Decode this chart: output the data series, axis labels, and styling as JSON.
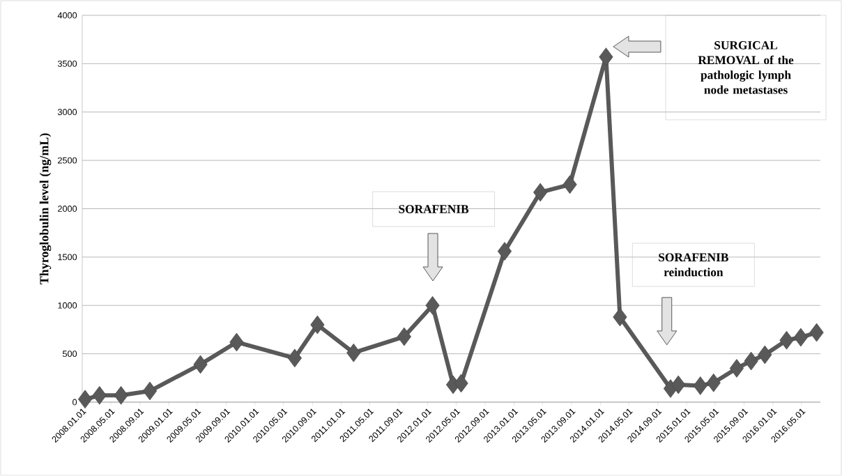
{
  "chart_data": {
    "type": "line",
    "ylabel": "Thyroglobulin  level (ng/mL)",
    "color": "#595959",
    "marker": "diamond",
    "line_style": "solid",
    "grid": "y",
    "x": [
      "2008-01-13",
      "2008-03-14",
      "2008-06-13",
      "2008-10-13",
      "2009-05-15",
      "2009-10-15",
      "2010-06-18",
      "2010-09-22",
      "2011-02-22",
      "2011-09-24",
      "2012-01-22",
      "2012-04-18",
      "2012-05-22",
      "2012-11-22",
      "2013-04-22",
      "2013-08-25",
      "2014-01-25",
      "2014-03-25",
      "2014-10-25",
      "2014-11-27",
      "2015-02-28",
      "2015-04-25",
      "2015-08-01",
      "2015-10-01",
      "2015-11-28",
      "2016-02-28",
      "2016-04-28",
      "2016-07-04"
    ],
    "values": [
      30,
      70,
      70,
      115,
      390,
      620,
      455,
      800,
      510,
      677,
      1000,
      180,
      195,
      1560,
      2170,
      2250,
      3570,
      880,
      140,
      180,
      170,
      200,
      350,
      425,
      490,
      640,
      670,
      720
    ],
    "xlim": [
      "2008-01-01",
      "2016-07-20"
    ],
    "ylim": [
      0,
      4000
    ],
    "yticks": [
      0,
      500,
      1000,
      1500,
      2000,
      2500,
      3000,
      3500,
      4000
    ],
    "xticks": [
      {
        "value": "2008-01-01",
        "label": "2008.01.01"
      },
      {
        "value": "2008-05-01",
        "label": "2008.05.01"
      },
      {
        "value": "2008-09-01",
        "label": "2008.09.01"
      },
      {
        "value": "2009-01-01",
        "label": "2009.01.01"
      },
      {
        "value": "2009-05-01",
        "label": "2009.05.01"
      },
      {
        "value": "2009-09-01",
        "label": "2009.09.01"
      },
      {
        "value": "2010-01-01",
        "label": "2010.01.01"
      },
      {
        "value": "2010-05-01",
        "label": "2010.05.01"
      },
      {
        "value": "2010-09-01",
        "label": "2010.09.01"
      },
      {
        "value": "2011-01-01",
        "label": "2011.01.01"
      },
      {
        "value": "2011-05-01",
        "label": "2011.05.01"
      },
      {
        "value": "2011-09-01",
        "label": "2011.09.01"
      },
      {
        "value": "2012-01-01",
        "label": "2012.01.01"
      },
      {
        "value": "2012-05-01",
        "label": "2012.05.01"
      },
      {
        "value": "2012-09-01",
        "label": "2012.09.01"
      },
      {
        "value": "2013-01-01",
        "label": "2013.01.01"
      },
      {
        "value": "2013-05-01",
        "label": "2013.05.01"
      },
      {
        "value": "2013-09-01",
        "label": "2013.09.01"
      },
      {
        "value": "2014-01-01",
        "label": "2014.01.01"
      },
      {
        "value": "2014-05-01",
        "label": "2014.05.01"
      },
      {
        "value": "2014-09-01",
        "label": "2014.09.01"
      },
      {
        "value": "2015-01-01",
        "label": "2015.01.01"
      },
      {
        "value": "2015-05-01",
        "label": "2015.05.01"
      },
      {
        "value": "2015-09-01",
        "label": "2015.09.01"
      },
      {
        "value": "2016-01-01",
        "label": "2016.01.01"
      },
      {
        "value": "2016-05-01",
        "label": "2016.05.01"
      }
    ],
    "annotations": [
      "SORAFENIB",
      "SURGICAL REMOVAL of the pathologic lymph node metastases",
      "SORAFENIB reinduction"
    ]
  }
}
